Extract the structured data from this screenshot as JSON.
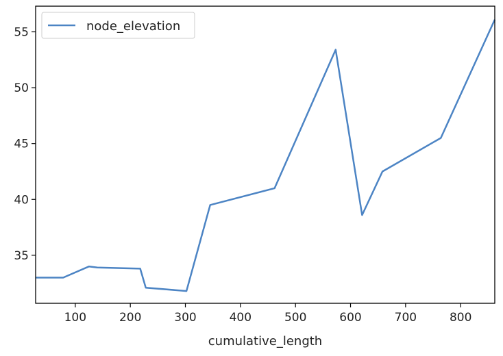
{
  "chart_data": {
    "type": "line",
    "xlabel": "cumulative_length",
    "ylabel": "",
    "xlim": [
      28,
      862
    ],
    "ylim": [
      30.7,
      57.3
    ],
    "x_ticks": [
      100,
      200,
      300,
      400,
      500,
      600,
      700,
      800
    ],
    "y_ticks": [
      35,
      40,
      45,
      50,
      55
    ],
    "grid": false,
    "legend_position": "top-left",
    "series": [
      {
        "name": "node_elevation",
        "color": "#4c84c4",
        "x": [
          28,
          78,
          125,
          140,
          218,
          228,
          302,
          345,
          462,
          573,
          621,
          658,
          764,
          862
        ],
        "y": [
          33.0,
          33.0,
          34.0,
          33.9,
          33.8,
          32.1,
          31.8,
          39.5,
          41.0,
          53.4,
          38.6,
          42.5,
          45.5,
          56.1
        ]
      }
    ]
  }
}
